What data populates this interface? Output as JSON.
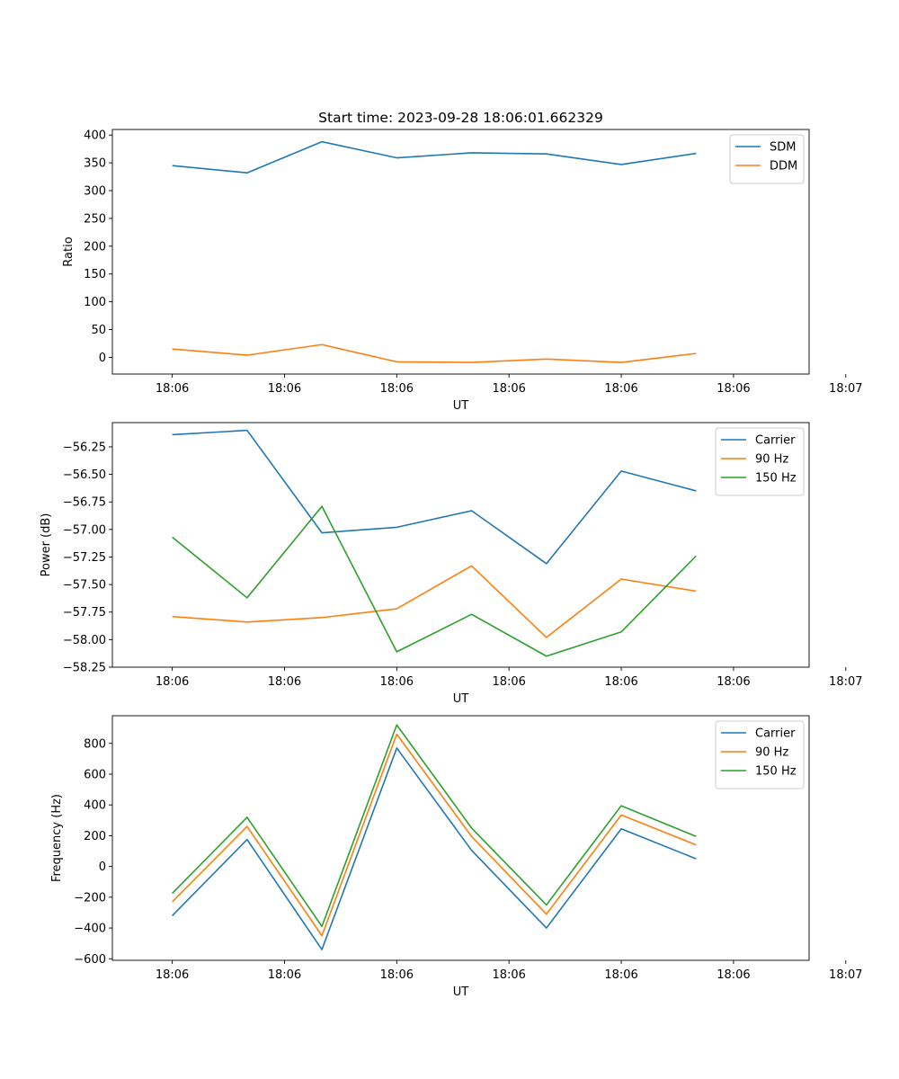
{
  "figure": {
    "title": "Start time: 2023-09-28 18:06:01.662329"
  },
  "chart_data": [
    {
      "type": "line",
      "title": "Start time: 2023-09-28 18:06:01.662329",
      "xlabel": "UT",
      "ylabel": "Ratio",
      "xlim": [
        -0.8,
        8.51
      ],
      "x_tick_values": [
        0,
        1.5,
        3,
        4.5,
        6,
        7.5,
        9
      ],
      "x_tick_labels": [
        "18:06",
        "18:06",
        "18:06",
        "18:06",
        "18:06",
        "18:06",
        "18:07"
      ],
      "ylim": [
        -30,
        410
      ],
      "y_ticks": [
        0,
        50,
        100,
        150,
        200,
        250,
        300,
        350,
        400
      ],
      "y_tick_labels": [
        "0",
        "50",
        "100",
        "150",
        "200",
        "250",
        "300",
        "350",
        "400"
      ],
      "legend_position": "top-right",
      "x": [
        0,
        1,
        2,
        3,
        4,
        5,
        6,
        7
      ],
      "series": [
        {
          "name": "SDM",
          "color": "#1f77b4",
          "values": [
            345,
            332,
            388,
            359,
            368,
            366,
            347,
            367
          ]
        },
        {
          "name": "DDM",
          "color": "#ff7f0e",
          "values": [
            15,
            4,
            23,
            -8,
            -9,
            -3,
            -9,
            7
          ]
        }
      ]
    },
    {
      "type": "line",
      "title": "",
      "xlabel": "UT",
      "ylabel": "Power (dB)",
      "xlim": [
        -0.8,
        8.51
      ],
      "x_tick_values": [
        0,
        1.5,
        3,
        4.5,
        6,
        7.5,
        9
      ],
      "x_tick_labels": [
        "18:06",
        "18:06",
        "18:06",
        "18:06",
        "18:06",
        "18:06",
        "18:07"
      ],
      "ylim": [
        -58.25,
        -56.03
      ],
      "y_ticks": [
        -58.25,
        -58.0,
        -57.75,
        -57.5,
        -57.25,
        -57.0,
        -56.75,
        -56.5,
        -56.25
      ],
      "y_tick_labels": [
        "−58.25",
        "−58.00",
        "−57.75",
        "−57.50",
        "−57.25",
        "−57.00",
        "−56.75",
        "−56.50",
        "−56.25"
      ],
      "legend_position": "top-right",
      "x": [
        0,
        1,
        2,
        3,
        4,
        5,
        6,
        7
      ],
      "series": [
        {
          "name": "Carrier",
          "color": "#1f77b4",
          "values": [
            -56.14,
            -56.1,
            -57.03,
            -56.98,
            -56.83,
            -57.31,
            -56.47,
            -56.65
          ]
        },
        {
          "name": "90 Hz",
          "color": "#ff7f0e",
          "values": [
            -57.79,
            -57.84,
            -57.8,
            -57.72,
            -57.33,
            -57.98,
            -57.45,
            -57.56
          ]
        },
        {
          "name": "150 Hz",
          "color": "#2ca02c",
          "values": [
            -57.07,
            -57.62,
            -56.79,
            -58.11,
            -57.77,
            -58.15,
            -57.93,
            -57.24
          ]
        }
      ]
    },
    {
      "type": "line",
      "title": "",
      "xlabel": "UT",
      "ylabel": "Frequency (Hz)",
      "xlim": [
        -0.8,
        8.51
      ],
      "x_tick_values": [
        0,
        1.5,
        3,
        4.5,
        6,
        7.5,
        9
      ],
      "x_tick_labels": [
        "18:06",
        "18:06",
        "18:06",
        "18:06",
        "18:06",
        "18:06",
        "18:07"
      ],
      "ylim": [
        -610,
        980
      ],
      "y_ticks": [
        -600,
        -400,
        -200,
        0,
        200,
        400,
        600,
        800
      ],
      "y_tick_labels": [
        "−600",
        "−400",
        "−200",
        "0",
        "200",
        "400",
        "600",
        "800"
      ],
      "legend_position": "top-right",
      "x": [
        0,
        1,
        2,
        3,
        4,
        5,
        6,
        7
      ],
      "series": [
        {
          "name": "Carrier",
          "color": "#1f77b4",
          "values": [
            -320,
            175,
            -540,
            770,
            105,
            -400,
            245,
            50
          ]
        },
        {
          "name": "90 Hz",
          "color": "#ff7f0e",
          "values": [
            -230,
            260,
            -450,
            860,
            195,
            -310,
            335,
            140
          ]
        },
        {
          "name": "150 Hz",
          "color": "#2ca02c",
          "values": [
            -175,
            320,
            -390,
            920,
            250,
            -250,
            395,
            195
          ]
        }
      ]
    }
  ]
}
